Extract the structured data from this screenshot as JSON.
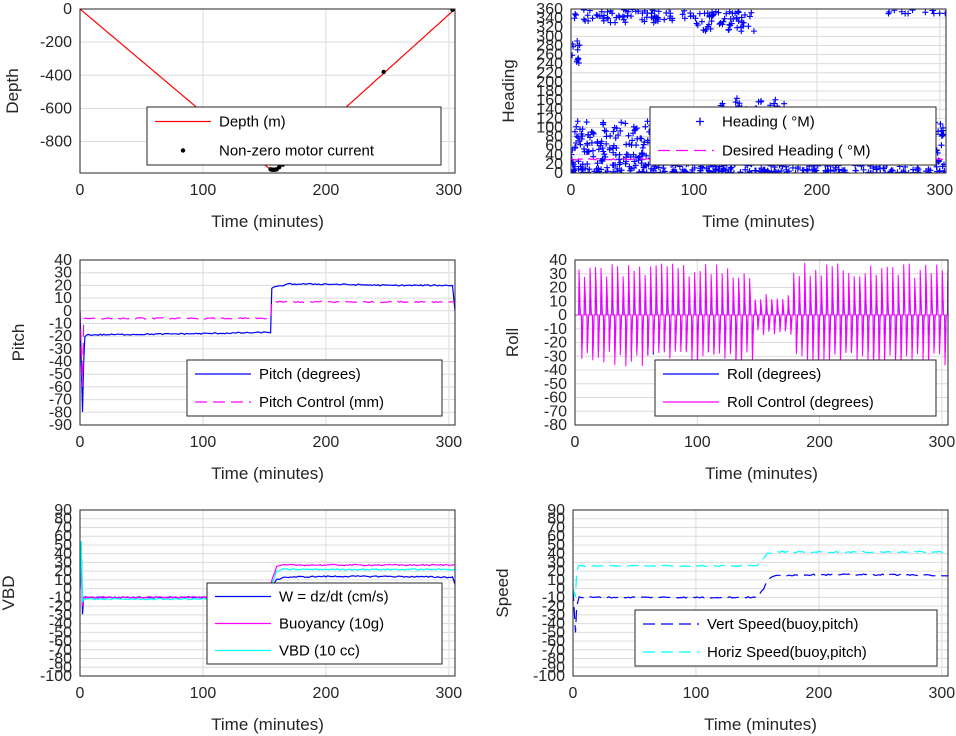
{
  "chart_data": [
    {
      "id": "depth",
      "type": "line",
      "xlabel": "Time (minutes)",
      "ylabel": "Depth",
      "xlim": [
        0,
        305
      ],
      "ylim": [
        -990,
        0
      ],
      "xticks": [
        0,
        100,
        200,
        300
      ],
      "yticks": [
        0,
        -200,
        -400,
        -600,
        -800
      ],
      "legend": "lower-center",
      "grid": true,
      "series": [
        {
          "name": "Depth (m)",
          "color": "#ff0000",
          "style": "line",
          "x": [
            0,
            155,
            160,
            305
          ],
          "y": [
            0,
            -970,
            -970,
            0
          ]
        },
        {
          "name": "Non-zero motor current",
          "color": "#000000",
          "style": "dots",
          "x": [
            155,
            156,
            157,
            158,
            159,
            160,
            162,
            165,
            247,
            303
          ],
          "y": [
            -968,
            -970,
            -970,
            -970,
            -969,
            -968,
            -955,
            -940,
            -380,
            -5
          ]
        }
      ]
    },
    {
      "id": "heading",
      "type": "scatter",
      "xlabel": "Time (minutes)",
      "ylabel": "Heading",
      "xlim": [
        0,
        305
      ],
      "ylim": [
        0,
        360
      ],
      "xticks": [
        0,
        100,
        200,
        300
      ],
      "yticks": [
        0,
        20,
        40,
        60,
        80,
        100,
        120,
        140,
        160,
        180,
        200,
        220,
        240,
        260,
        280,
        300,
        320,
        340,
        360
      ],
      "legend": "lower-right",
      "grid": true,
      "series": [
        {
          "name": "Heading ( °M)",
          "color": "#0000ff",
          "style": "plus",
          "clusters": [
            {
              "x": [
                0,
                8
              ],
              "y": [
                230,
                290
              ]
            },
            {
              "x": [
                2,
                100
              ],
              "y": [
                330,
                360
              ]
            },
            {
              "x": [
                100,
                150
              ],
              "y": [
                310,
                355
              ]
            },
            {
              "x": [
                0,
                125
              ],
              "y": [
                0,
                115
              ]
            },
            {
              "x": [
                120,
                175
              ],
              "y": [
                0,
                165
              ]
            },
            {
              "x": [
                175,
                305
              ],
              "y": [
                0,
                120
              ]
            },
            {
              "x": [
                255,
                305
              ],
              "y": [
                350,
                360
              ]
            }
          ]
        },
        {
          "name": "Desired Heading ( °M)",
          "color": "#ff00ff",
          "style": "dash",
          "x": [
            0,
            305
          ],
          "y": [
            30,
            30
          ]
        }
      ]
    },
    {
      "id": "pitch",
      "type": "line",
      "xlabel": "Time (minutes)",
      "ylabel": "Pitch",
      "xlim": [
        0,
        305
      ],
      "ylim": [
        -90,
        40
      ],
      "xticks": [
        0,
        100,
        200,
        300
      ],
      "yticks": [
        40,
        30,
        20,
        10,
        0,
        -10,
        -20,
        -30,
        -40,
        -50,
        -60,
        -70,
        -80,
        -90
      ],
      "legend": "lower-right",
      "grid": true,
      "series": [
        {
          "name": "Pitch (degrees)",
          "color": "#0000ff",
          "style": "line",
          "x": [
            0,
            2,
            3,
            4,
            6,
            100,
            155,
            156,
            170,
            200,
            250,
            303,
            305
          ],
          "y": [
            0,
            -80,
            -40,
            -20,
            -19,
            -18,
            -17,
            18,
            21,
            21,
            20,
            20,
            0
          ]
        },
        {
          "name": "Pitch Control (mm)",
          "color": "#ff00ff",
          "style": "dash",
          "x": [
            0,
            2,
            3,
            155,
            156,
            305
          ],
          "y": [
            0,
            -60,
            -6,
            -6,
            7,
            7
          ]
        }
      ]
    },
    {
      "id": "roll",
      "type": "line",
      "xlabel": "Time (minutes)",
      "ylabel": "Roll",
      "xlim": [
        0,
        305
      ],
      "ylim": [
        -80,
        40
      ],
      "xticks": [
        0,
        100,
        200,
        300
      ],
      "yticks": [
        40,
        30,
        20,
        10,
        0,
        -10,
        -20,
        -30,
        -40,
        -50,
        -60,
        -70,
        -80
      ],
      "legend": "lower-right",
      "grid": true,
      "series": [
        {
          "name": "Roll (degrees)",
          "color": "#0000ff",
          "style": "oscillation",
          "period": 4.5,
          "amp_hi": 25,
          "amp_lo": -30
        },
        {
          "name": "Roll Control (degrees)",
          "color": "#ff00ff",
          "style": "oscillation",
          "period": 4.5,
          "amp_hi": 38,
          "amp_lo": -38
        }
      ]
    },
    {
      "id": "vbd",
      "type": "line",
      "xlabel": "Time (minutes)",
      "ylabel": "VBD",
      "xlim": [
        0,
        305
      ],
      "ylim": [
        -100,
        90
      ],
      "xticks": [
        0,
        100,
        200,
        300
      ],
      "yticks": [
        90,
        80,
        70,
        60,
        50,
        40,
        30,
        20,
        10,
        0,
        -10,
        -20,
        -30,
        -40,
        -50,
        -60,
        -70,
        -80,
        -90,
        -100
      ],
      "legend": "lower-right",
      "grid": true,
      "series": [
        {
          "name": "W = dz/dt (cm/s)",
          "color": "#0000ff",
          "style": "line",
          "x": [
            0,
            1,
            2,
            3,
            150,
            155,
            160,
            165,
            200,
            250,
            303,
            305
          ],
          "y": [
            0,
            45,
            -30,
            -10,
            -10,
            0,
            10,
            13,
            14,
            14,
            13,
            5
          ]
        },
        {
          "name": "Buoyancy (10g)",
          "color": "#ff00ff",
          "style": "line",
          "x": [
            0,
            1,
            2,
            3,
            150,
            155,
            160,
            165,
            200,
            250,
            303,
            305
          ],
          "y": [
            0,
            50,
            -20,
            -10,
            -10,
            5,
            25,
            27,
            27,
            27,
            27,
            27
          ]
        },
        {
          "name": "VBD (10 cc)",
          "color": "#00ffff",
          "style": "line",
          "x": [
            0,
            1,
            2,
            3,
            150,
            155,
            160,
            165,
            200,
            250,
            303,
            305
          ],
          "y": [
            0,
            55,
            -15,
            -12,
            -12,
            0,
            20,
            22,
            22,
            22,
            22,
            22
          ]
        }
      ]
    },
    {
      "id": "speed",
      "type": "line",
      "xlabel": "Time (minutes)",
      "ylabel": "Speed",
      "xlim": [
        0,
        305
      ],
      "ylim": [
        -100,
        90
      ],
      "xticks": [
        0,
        100,
        200,
        300
      ],
      "yticks": [
        90,
        80,
        70,
        60,
        50,
        40,
        30,
        20,
        10,
        0,
        -10,
        -20,
        -30,
        -40,
        -50,
        -60,
        -70,
        -80,
        -90,
        -100
      ],
      "legend": "lower-right",
      "grid": true,
      "series": [
        {
          "name": "Vert Speed(buoy,pitch)",
          "color": "#0000ff",
          "style": "dash",
          "x": [
            0,
            2,
            3,
            5,
            150,
            155,
            158,
            165,
            200,
            250,
            305
          ],
          "y": [
            0,
            -50,
            -20,
            -10,
            -10,
            0,
            10,
            15,
            16,
            16,
            15
          ]
        },
        {
          "name": "Horiz Speed(buoy,pitch)",
          "color": "#00ffff",
          "style": "dash",
          "x": [
            0,
            2,
            3,
            5,
            150,
            155,
            158,
            165,
            200,
            250,
            305
          ],
          "y": [
            0,
            -10,
            20,
            26,
            26,
            35,
            40,
            42,
            42,
            42,
            42
          ]
        }
      ]
    }
  ]
}
